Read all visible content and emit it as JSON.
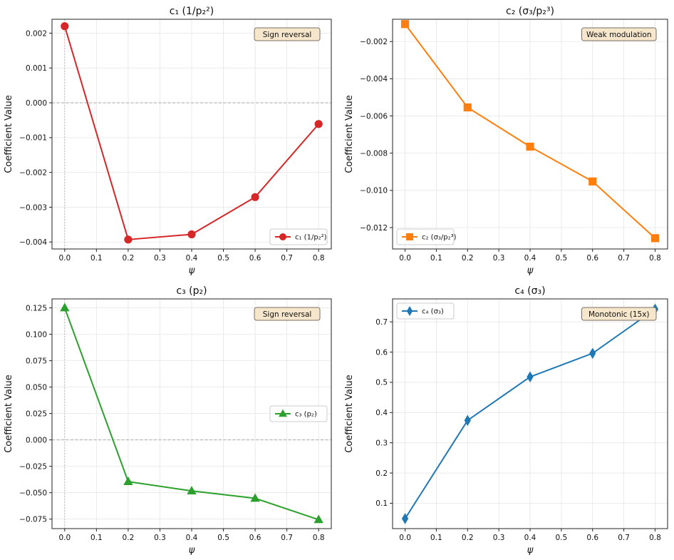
{
  "chart_data": [
    {
      "type": "line",
      "title": "c₁ (1/p₂²)",
      "xlabel": "ψ",
      "ylabel": "Coefficient Value",
      "x": [
        0.0,
        0.2,
        0.4,
        0.6,
        0.8
      ],
      "series": [
        {
          "name": "c₁ (1/p₂²)",
          "values": [
            0.0022,
            -0.00393,
            -0.00378,
            -0.00271,
            -0.00061
          ],
          "color": "#d62728",
          "marker": "circle"
        }
      ],
      "xlim": [
        -0.04,
        0.84
      ],
      "ylim": [
        -0.0042,
        0.0024
      ],
      "xticks": [
        0.0,
        0.1,
        0.2,
        0.3,
        0.4,
        0.5,
        0.6,
        0.7,
        0.8
      ],
      "xtick_labels": [
        "0.0",
        "0.1",
        "0.2",
        "0.3",
        "0.4",
        "0.5",
        "0.6",
        "0.7",
        "0.8"
      ],
      "yticks": [
        -0.004,
        -0.003,
        -0.002,
        -0.001,
        0.0,
        0.001,
        0.002
      ],
      "ytick_labels": [
        "−0.004",
        "−0.003",
        "−0.002",
        "−0.001",
        "0.000",
        "0.001",
        "0.002"
      ],
      "reference_lines": {
        "y_zero": true,
        "x_zero": true
      },
      "annotation": "Sign reversal",
      "annotation_position": "top-right",
      "legend_position": "lower-right",
      "grid": true
    },
    {
      "type": "line",
      "title": "c₂ (σ₃/p₂³)",
      "xlabel": "ψ",
      "ylabel": "Coefficient Value",
      "x": [
        0.0,
        0.2,
        0.4,
        0.6,
        0.8
      ],
      "series": [
        {
          "name": "c₂ (σ₃/p₂³)",
          "values": [
            -0.00106,
            -0.00554,
            -0.00765,
            -0.00952,
            -0.01257
          ],
          "color": "#ff7f0e",
          "marker": "square"
        }
      ],
      "xlim": [
        -0.04,
        0.84
      ],
      "ylim": [
        -0.01315,
        -0.0008
      ],
      "xticks": [
        0.0,
        0.1,
        0.2,
        0.3,
        0.4,
        0.5,
        0.6,
        0.7,
        0.8
      ],
      "xtick_labels": [
        "0.0",
        "0.1",
        "0.2",
        "0.3",
        "0.4",
        "0.5",
        "0.6",
        "0.7",
        "0.8"
      ],
      "yticks": [
        -0.012,
        -0.01,
        -0.008,
        -0.006,
        -0.004,
        -0.002
      ],
      "ytick_labels": [
        "−0.012",
        "−0.010",
        "−0.008",
        "−0.006",
        "−0.004",
        "−0.002"
      ],
      "reference_lines": {
        "y_zero": false,
        "x_zero": false
      },
      "annotation": "Weak modulation",
      "annotation_position": "top-right",
      "legend_position": "lower-left",
      "grid": true
    },
    {
      "type": "line",
      "title": "c₃ (p₂)",
      "xlabel": "ψ",
      "ylabel": "Coefficient Value",
      "x": [
        0.0,
        0.2,
        0.4,
        0.6,
        0.8
      ],
      "series": [
        {
          "name": "c₃ (p₂)",
          "values": [
            0.125,
            -0.0395,
            -0.0483,
            -0.0553,
            -0.0755
          ],
          "color": "#2ca02c",
          "marker": "triangle"
        }
      ],
      "xlim": [
        -0.04,
        0.84
      ],
      "ylim": [
        -0.084,
        0.1335
      ],
      "xticks": [
        0.0,
        0.1,
        0.2,
        0.3,
        0.4,
        0.5,
        0.6,
        0.7,
        0.8
      ],
      "xtick_labels": [
        "0.0",
        "0.1",
        "0.2",
        "0.3",
        "0.4",
        "0.5",
        "0.6",
        "0.7",
        "0.8"
      ],
      "yticks": [
        -0.075,
        -0.05,
        -0.025,
        0.0,
        0.025,
        0.05,
        0.075,
        0.1,
        0.125
      ],
      "ytick_labels": [
        "−0.075",
        "−0.050",
        "−0.025",
        "0.000",
        "0.025",
        "0.050",
        "0.075",
        "0.100",
        "0.125"
      ],
      "reference_lines": {
        "y_zero": true,
        "x_zero": true
      },
      "annotation": "Sign reversal",
      "annotation_position": "top-right",
      "legend_position": "center-right",
      "grid": true
    },
    {
      "type": "line",
      "title": "c₄ (σ₃)",
      "xlabel": "ψ",
      "ylabel": "Coefficient Value",
      "x": [
        0.0,
        0.2,
        0.4,
        0.6,
        0.8
      ],
      "series": [
        {
          "name": "c₄ (σ₃)",
          "values": [
            0.049,
            0.374,
            0.518,
            0.596,
            0.742
          ],
          "color": "#1f77b4",
          "marker": "diamond"
        }
      ],
      "xlim": [
        -0.04,
        0.84
      ],
      "ylim": [
        0.016,
        0.776
      ],
      "xticks": [
        0.0,
        0.1,
        0.2,
        0.3,
        0.4,
        0.5,
        0.6,
        0.7,
        0.8
      ],
      "xtick_labels": [
        "0.0",
        "0.1",
        "0.2",
        "0.3",
        "0.4",
        "0.5",
        "0.6",
        "0.7",
        "0.8"
      ],
      "yticks": [
        0.1,
        0.2,
        0.3,
        0.4,
        0.5,
        0.6,
        0.7
      ],
      "ytick_labels": [
        "0.1",
        "0.2",
        "0.3",
        "0.4",
        "0.5",
        "0.6",
        "0.7"
      ],
      "reference_lines": {
        "y_zero": false,
        "x_zero": false
      },
      "annotation": "Monotonic (15x)",
      "annotation_position": "top-right",
      "legend_position": "top-left",
      "grid": true
    }
  ]
}
